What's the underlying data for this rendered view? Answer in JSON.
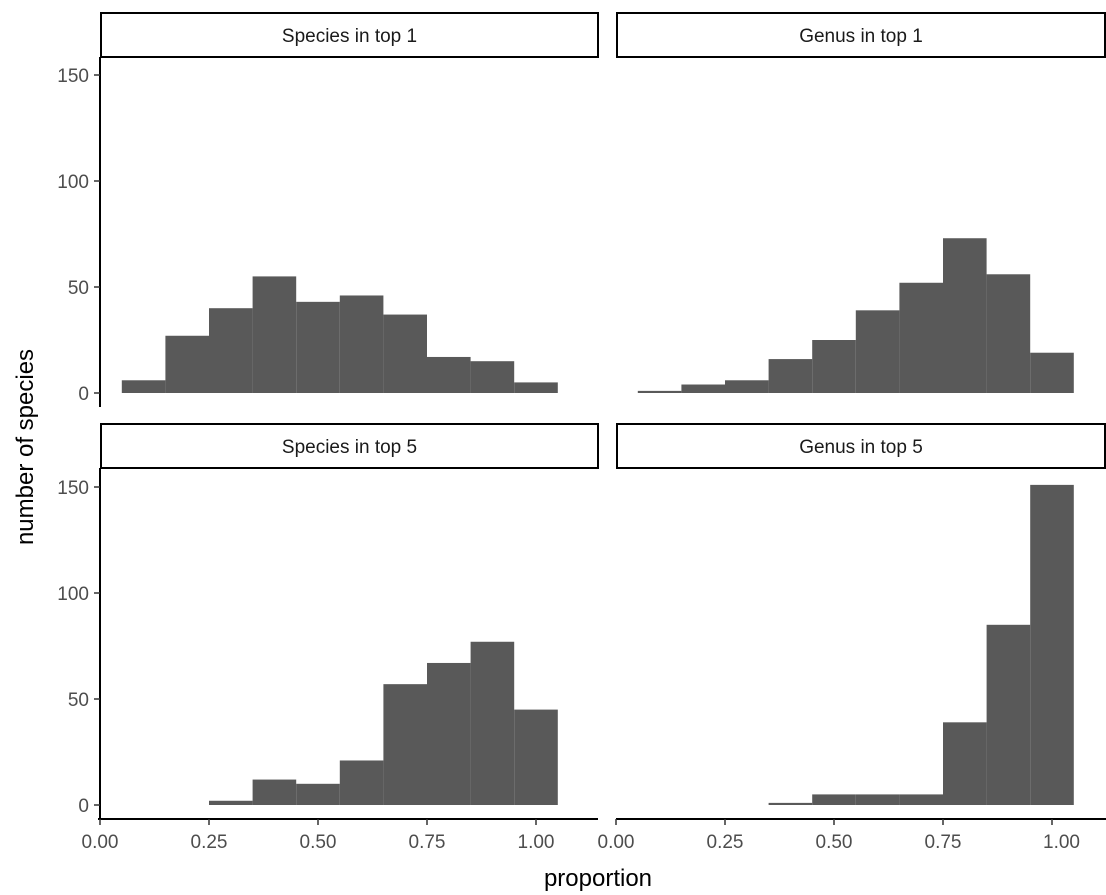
{
  "chart_data": {
    "type": "bar",
    "xlabel": "proportion",
    "ylabel": "number of species",
    "xlim": [
      0,
      1.05
    ],
    "ylim": [
      0,
      157
    ],
    "x_ticks": [
      0,
      0.25,
      0.5,
      0.75,
      1.0
    ],
    "x_tick_labels": [
      "0.00",
      "0.25",
      "0.50",
      "0.75",
      "1.00"
    ],
    "y_ticks": [
      0,
      50,
      100,
      150
    ],
    "y_tick_labels": [
      "0",
      "50",
      "100",
      "150"
    ],
    "bin_width": 0.1,
    "bin_starts": [
      0.05,
      0.15,
      0.25,
      0.35,
      0.45,
      0.55,
      0.65,
      0.75,
      0.85,
      0.95
    ],
    "bar_color": "#595959",
    "panels": [
      {
        "title": "Species in top 1",
        "values": [
          6,
          27,
          40,
          55,
          43,
          46,
          37,
          17,
          15,
          5
        ]
      },
      {
        "title": "Genus in top 1",
        "values": [
          1,
          4,
          6,
          16,
          25,
          39,
          52,
          73,
          56,
          19
        ]
      },
      {
        "title": "Species in top 5",
        "values": [
          0,
          0,
          2,
          12,
          10,
          21,
          57,
          67,
          77,
          45
        ]
      },
      {
        "title": "Genus in top 5",
        "values": [
          0,
          0,
          0,
          1,
          5,
          5,
          5,
          39,
          85,
          151
        ]
      }
    ]
  }
}
